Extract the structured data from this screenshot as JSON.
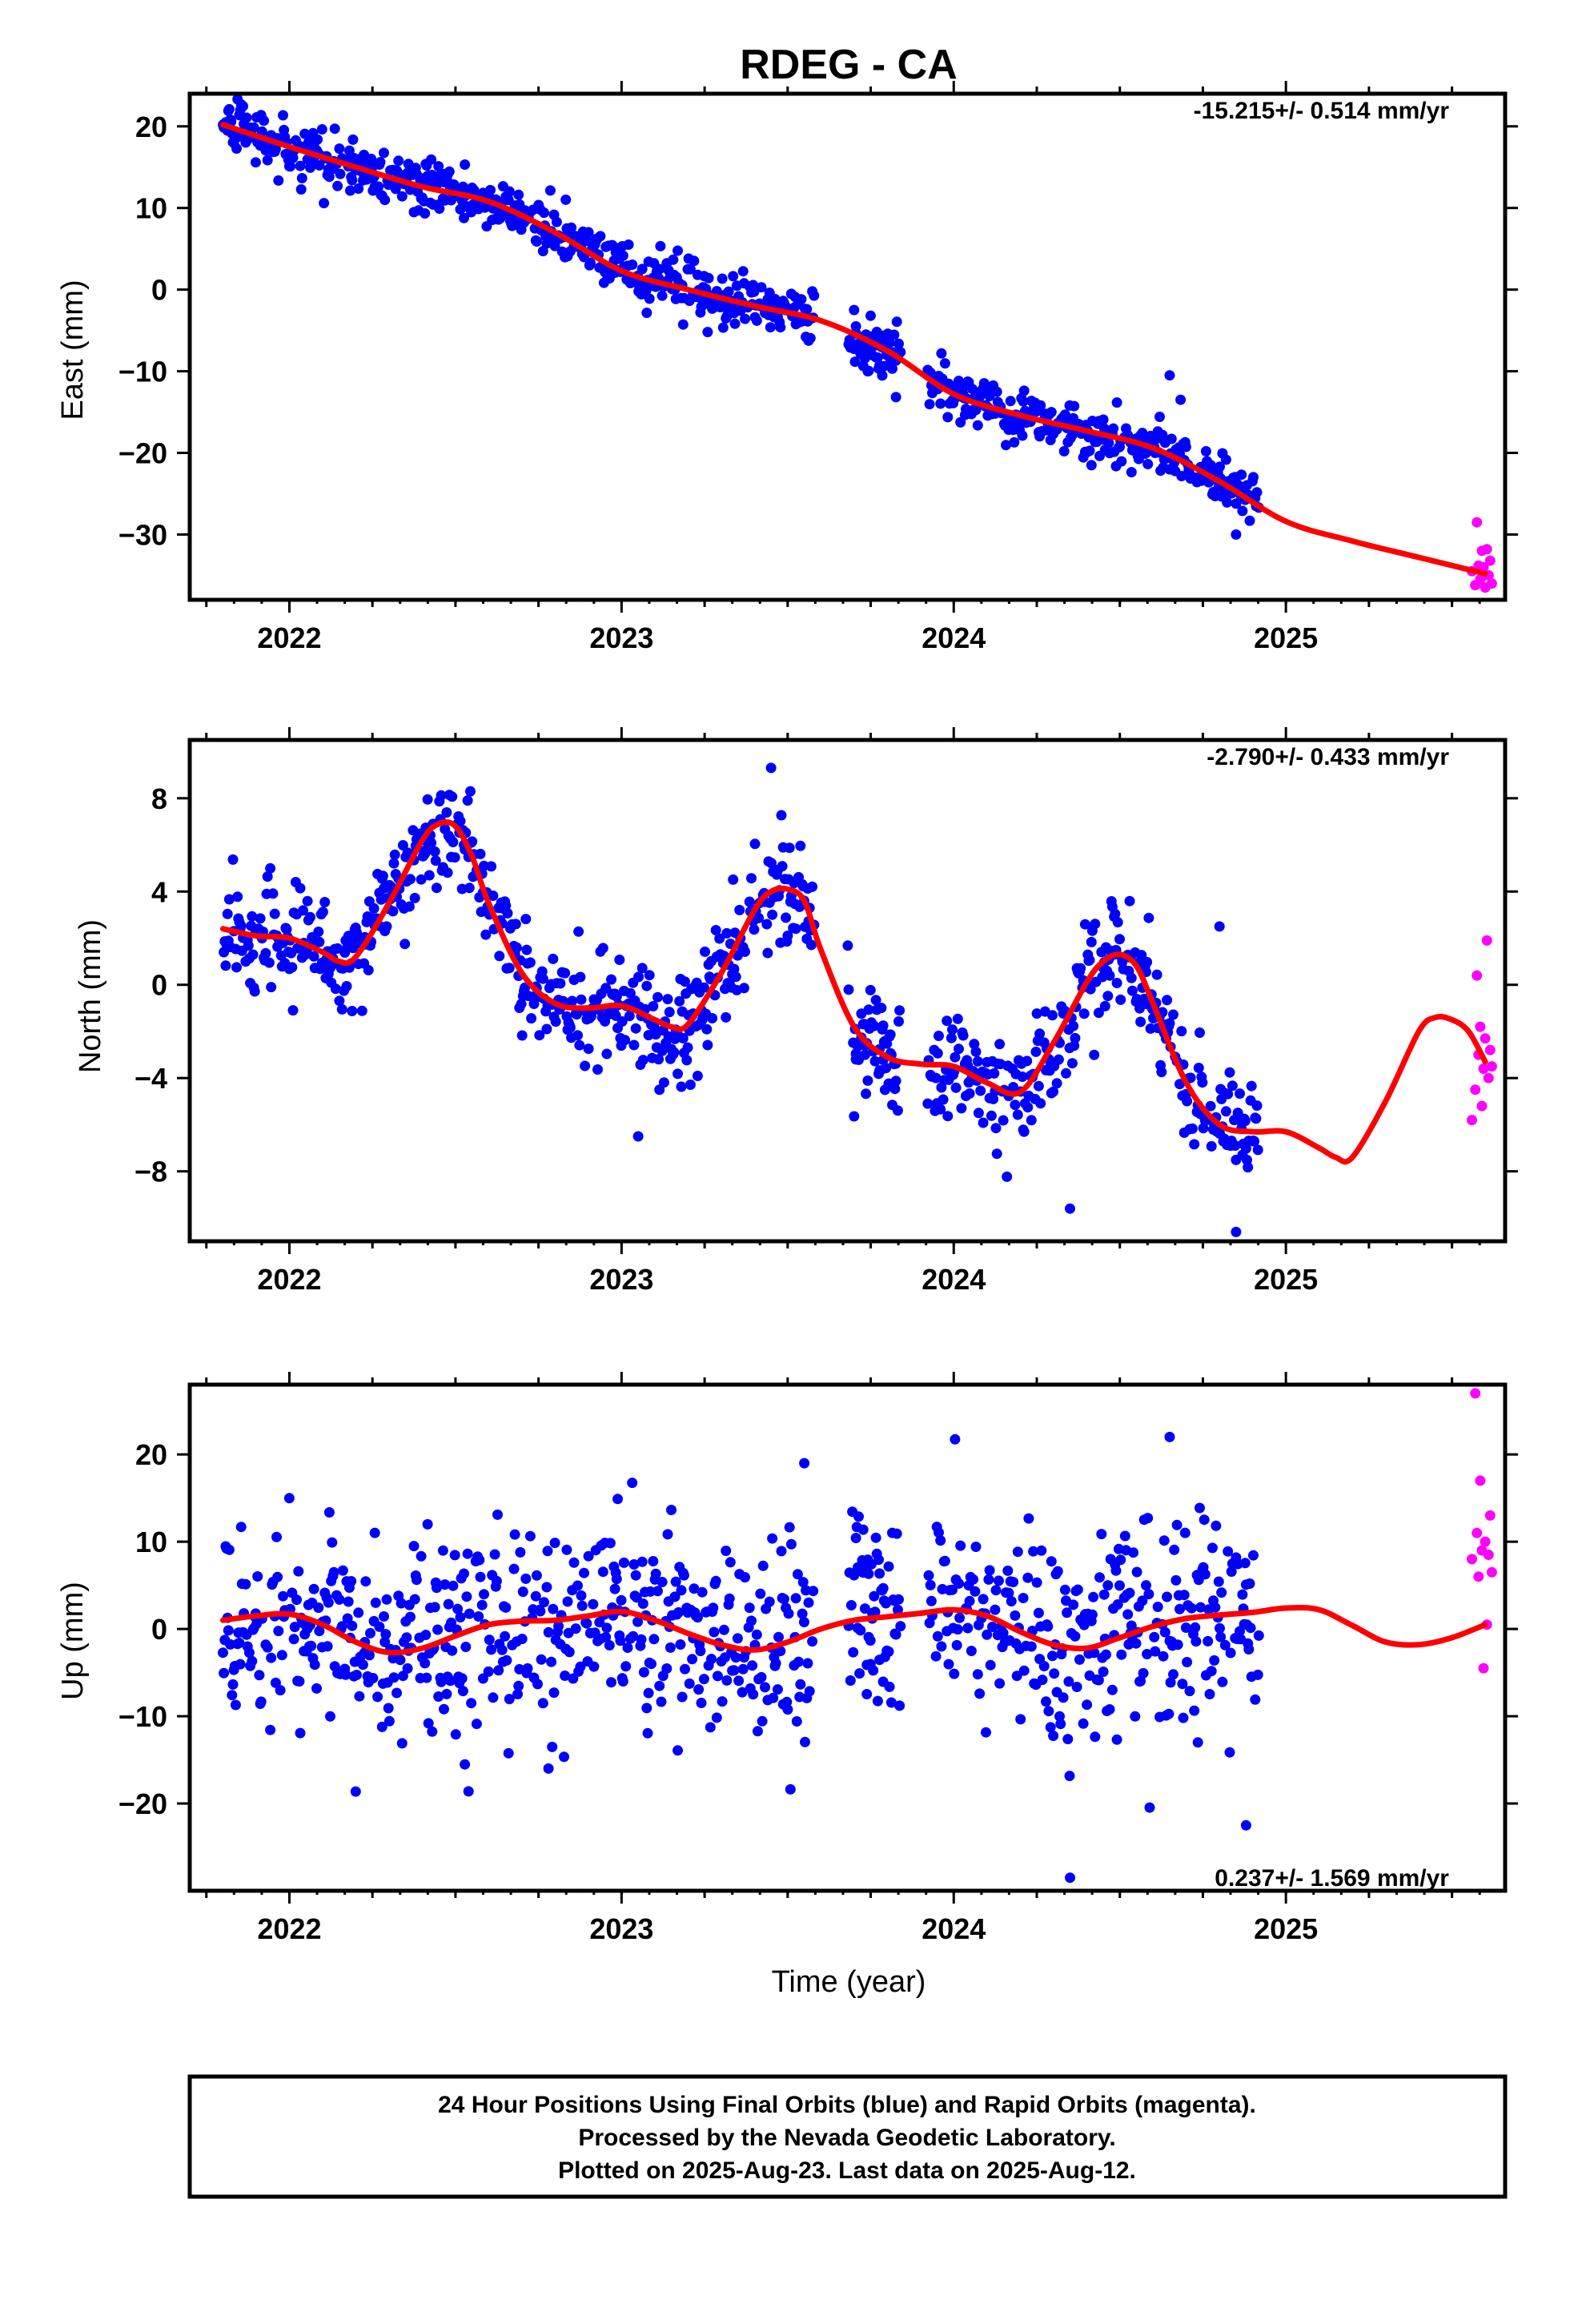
{
  "title": "RDEG - CA",
  "colors": {
    "final": "#0000ff",
    "rapid": "#ff00ff",
    "fit": "#ff0000"
  },
  "caption": {
    "line1": "24 Hour Positions Using Final Orbits (blue) and Rapid Orbits (magenta).",
    "line2": "Processed by the Nevada Geodetic Laboratory.",
    "line3": "Plotted on 2025-Aug-23. Last data on 2025-Aug-12."
  },
  "chart_data": [
    {
      "type": "scatter",
      "name": "east",
      "ylabel": "East (mm)",
      "xlabel": "",
      "rate_label": "-15.215+/- 0.514 mm/yr",
      "xlim": [
        2021.7,
        2025.66
      ],
      "ylim": [
        -38,
        24
      ],
      "xticks": [
        2022,
        2023,
        2024,
        2025
      ],
      "yticks": [
        -30,
        -20,
        -10,
        0,
        10,
        20
      ],
      "yticklabels": [
        "−30",
        "−20",
        "−10",
        "0",
        "10",
        "20"
      ],
      "trend": {
        "x0": 2021.8,
        "y0": 20.2,
        "rate": -15.215
      },
      "fit": {
        "x": [
          2021.8,
          2022.0,
          2022.2,
          2022.4,
          2022.6,
          2022.8,
          2023.0,
          2023.2,
          2023.4,
          2023.6,
          2023.8,
          2024.0,
          2024.2,
          2024.4,
          2024.6,
          2024.8,
          2025.0,
          2025.2,
          2025.4,
          2025.6
        ],
        "y": [
          20.2,
          17.5,
          15.0,
          12.6,
          10.8,
          7.0,
          2.3,
          0.0,
          -2.0,
          -3.8,
          -7.5,
          -12.8,
          -15.4,
          -17.3,
          -19.4,
          -23.5,
          -28.4,
          -30.8,
          -32.8,
          -34.8
        ]
      },
      "noise": 1.6,
      "final_range": [
        2021.8,
        2024.92
      ],
      "rapid": {
        "x": [
          2025.56,
          2025.57,
          2025.575,
          2025.58,
          2025.585,
          2025.59,
          2025.595,
          2025.6,
          2025.605,
          2025.61,
          2025.615,
          2025.62
        ],
        "y": [
          -34.5,
          -36.2,
          -28.5,
          -33.8,
          -35.5,
          -32.0,
          -34.0,
          -36.5,
          -31.8,
          -35.0,
          -33.2,
          -36.0
        ]
      },
      "outliers": {
        "x": [
          2024.65,
          2023.7,
          2023.75,
          2024.85
        ],
        "y": [
          -10.5,
          -2.5,
          -3.2,
          -30.0
        ]
      }
    },
    {
      "type": "scatter",
      "name": "north",
      "ylabel": "North (mm)",
      "xlabel": "",
      "rate_label": "-2.790+/- 0.433 mm/yr",
      "xlim": [
        2021.7,
        2025.66
      ],
      "ylim": [
        -11,
        10.5
      ],
      "xticks": [
        2022,
        2023,
        2024,
        2025
      ],
      "yticks": [
        -8,
        -4,
        0,
        4,
        8
      ],
      "yticklabels": [
        "−8",
        "−4",
        "0",
        "4",
        "8"
      ],
      "fit": {
        "x": [
          2021.8,
          2021.9,
          2022.0,
          2022.1,
          2022.15,
          2022.2,
          2022.3,
          2022.4,
          2022.45,
          2022.5,
          2022.55,
          2022.6,
          2022.7,
          2022.8,
          2022.9,
          2023.0,
          2023.1,
          2023.15,
          2023.2,
          2023.3,
          2023.4,
          2023.45,
          2023.5,
          2023.55,
          2023.6,
          2023.7,
          2023.8,
          2023.9,
          2024.0,
          2024.1,
          2024.2,
          2024.3,
          2024.4,
          2024.45,
          2024.5,
          2024.55,
          2024.6,
          2024.7,
          2024.8,
          2024.9,
          2025.0,
          2025.1,
          2025.15,
          2025.2,
          2025.3,
          2025.4,
          2025.45,
          2025.5,
          2025.55,
          2025.6
        ],
        "y": [
          2.4,
          2.1,
          2.0,
          1.4,
          1.0,
          1.2,
          3.5,
          6.2,
          6.9,
          6.8,
          5.5,
          3.5,
          0.5,
          -0.8,
          -1.0,
          -0.9,
          -1.5,
          -1.8,
          -1.7,
          0.5,
          3.2,
          4.0,
          4.1,
          3.6,
          1.5,
          -1.8,
          -3.1,
          -3.4,
          -3.5,
          -4.2,
          -4.6,
          -2.5,
          0.1,
          1.0,
          1.3,
          0.8,
          -0.8,
          -4.2,
          -6.0,
          -6.3,
          -6.3,
          -7.0,
          -7.4,
          -7.4,
          -5.0,
          -2.0,
          -1.4,
          -1.5,
          -2.0,
          -3.3
        ]
      },
      "noise": 1.2,
      "final_range": [
        2021.8,
        2024.92
      ],
      "rapid": {
        "x": [
          2025.56,
          2025.57,
          2025.575,
          2025.58,
          2025.585,
          2025.59,
          2025.595,
          2025.6,
          2025.605,
          2025.61,
          2025.615,
          2025.62
        ],
        "y": [
          -5.8,
          -4.5,
          0.4,
          -3.0,
          -1.8,
          -5.2,
          -3.6,
          -2.3,
          1.9,
          -4.0,
          -2.8,
          -3.5
        ]
      },
      "outliers": {
        "x": [
          2024.35,
          2024.85,
          2023.05,
          2024.8,
          2023.45
        ],
        "y": [
          -9.6,
          -10.6,
          -6.5,
          2.5,
          9.3
        ]
      }
    },
    {
      "type": "scatter",
      "name": "up",
      "ylabel": "Up (mm)",
      "xlabel": "Time (year)",
      "rate_label": "0.237+/- 1.569 mm/yr",
      "xlim": [
        2021.7,
        2025.66
      ],
      "ylim": [
        -30,
        28
      ],
      "xticks": [
        2022,
        2023,
        2024,
        2025
      ],
      "yticks": [
        -20,
        -10,
        0,
        10,
        20
      ],
      "yticklabels": [
        "−20",
        "−10",
        "0",
        "10",
        "20"
      ],
      "fit": {
        "x": [
          2021.8,
          2021.9,
          2022.0,
          2022.1,
          2022.2,
          2022.3,
          2022.4,
          2022.5,
          2022.6,
          2022.7,
          2022.8,
          2022.9,
          2023.0,
          2023.1,
          2023.2,
          2023.3,
          2023.4,
          2023.5,
          2023.6,
          2023.7,
          2023.8,
          2023.9,
          2024.0,
          2024.1,
          2024.2,
          2024.3,
          2024.4,
          2024.5,
          2024.6,
          2024.7,
          2024.8,
          2024.9,
          2025.0,
          2025.1,
          2025.2,
          2025.3,
          2025.4,
          2025.5,
          2025.6
        ],
        "y": [
          1.0,
          1.5,
          1.7,
          0.5,
          -1.5,
          -2.7,
          -2.2,
          -0.8,
          0.5,
          0.9,
          1.0,
          1.5,
          2.0,
          1.0,
          -0.5,
          -1.8,
          -2.4,
          -1.5,
          0.0,
          1.0,
          1.4,
          1.8,
          2.2,
          1.5,
          -0.3,
          -1.8,
          -2.2,
          -1.0,
          0.3,
          1.2,
          1.6,
          1.9,
          2.4,
          2.2,
          0.4,
          -1.5,
          -1.8,
          -1.0,
          0.5
        ]
      },
      "noise": 6.0,
      "final_range": [
        2021.8,
        2024.92
      ],
      "rapid": {
        "x": [
          2025.56,
          2025.57,
          2025.575,
          2025.58,
          2025.585,
          2025.59,
          2025.595,
          2025.6,
          2025.605,
          2025.61,
          2025.615,
          2025.62
        ],
        "y": [
          8.0,
          27.0,
          11.0,
          6.0,
          17.0,
          9.0,
          -4.5,
          10.0,
          0.5,
          8.5,
          13.0,
          6.5
        ]
      },
      "outliers": {
        "x": [
          2024.35,
          2024.88,
          2024.65,
          2023.55,
          2022.78
        ],
        "y": [
          -28.5,
          -22.5,
          22.0,
          19.0,
          -16.0
        ]
      }
    }
  ]
}
